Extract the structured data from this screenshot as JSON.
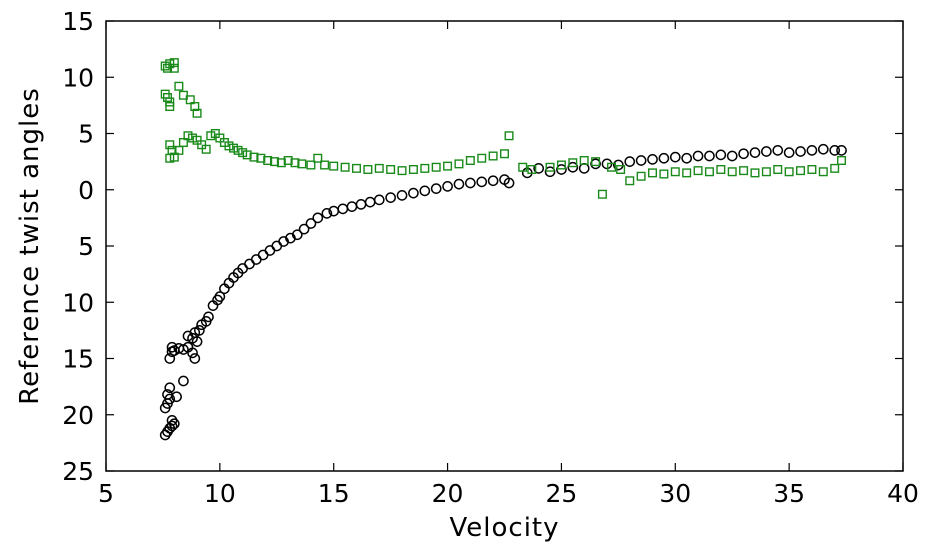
{
  "chart_data": {
    "type": "scatter",
    "title": "",
    "xlabel": "Velocity",
    "ylabel": "Reference twist angles",
    "xlim": [
      5,
      40
    ],
    "ylim": [
      -25,
      15
    ],
    "grid": false,
    "x_ticks": [
      5,
      10,
      15,
      20,
      25,
      30,
      35,
      40
    ],
    "y_ticks": [
      15,
      10,
      5,
      0,
      -5,
      -10,
      -15,
      -20,
      -25
    ],
    "y_tick_labels": [
      "15",
      "10",
      "5",
      "0",
      "5",
      "10",
      "15",
      "20",
      "25"
    ],
    "series": [
      {
        "marker": "circle",
        "color": "#000000",
        "points": [
          [
            7.6,
            -21.8
          ],
          [
            7.7,
            -21.5
          ],
          [
            7.8,
            -21.2
          ],
          [
            7.9,
            -21.0
          ],
          [
            8.0,
            -20.8
          ],
          [
            7.9,
            -20.5
          ],
          [
            7.6,
            -19.4
          ],
          [
            7.7,
            -19.0
          ],
          [
            7.8,
            -18.6
          ],
          [
            7.7,
            -18.2
          ],
          [
            7.8,
            -17.6
          ],
          [
            8.1,
            -18.4
          ],
          [
            8.4,
            -17.0
          ],
          [
            7.8,
            -15.0
          ],
          [
            7.9,
            -14.4
          ],
          [
            7.9,
            -14.0
          ],
          [
            8.0,
            -14.3
          ],
          [
            8.2,
            -14.1
          ],
          [
            8.4,
            -14.2
          ],
          [
            8.6,
            -14.0
          ],
          [
            8.8,
            -14.5
          ],
          [
            8.9,
            -15.0
          ],
          [
            9.0,
            -13.5
          ],
          [
            8.8,
            -13.2
          ],
          [
            8.6,
            -13.0
          ],
          [
            8.9,
            -12.7
          ],
          [
            9.1,
            -12.5
          ],
          [
            9.2,
            -12.0
          ],
          [
            9.4,
            -11.7
          ],
          [
            9.5,
            -11.3
          ],
          [
            9.7,
            -10.3
          ],
          [
            9.9,
            -9.8
          ],
          [
            10.0,
            -9.5
          ],
          [
            10.2,
            -8.8
          ],
          [
            10.4,
            -8.3
          ],
          [
            10.6,
            -7.8
          ],
          [
            10.8,
            -7.4
          ],
          [
            11.0,
            -7.0
          ],
          [
            11.3,
            -6.6
          ],
          [
            11.6,
            -6.2
          ],
          [
            11.9,
            -5.8
          ],
          [
            12.2,
            -5.4
          ],
          [
            12.5,
            -5.0
          ],
          [
            12.8,
            -4.6
          ],
          [
            13.1,
            -4.3
          ],
          [
            13.4,
            -4.0
          ],
          [
            13.7,
            -3.5
          ],
          [
            14.0,
            -3.0
          ],
          [
            14.3,
            -2.5
          ],
          [
            14.7,
            -2.1
          ],
          [
            15.0,
            -1.9
          ],
          [
            15.4,
            -1.7
          ],
          [
            15.8,
            -1.5
          ],
          [
            16.2,
            -1.3
          ],
          [
            16.6,
            -1.1
          ],
          [
            17.0,
            -0.9
          ],
          [
            17.5,
            -0.7
          ],
          [
            18.0,
            -0.5
          ],
          [
            18.5,
            -0.3
          ],
          [
            19.0,
            -0.1
          ],
          [
            19.5,
            0.1
          ],
          [
            20.0,
            0.3
          ],
          [
            20.5,
            0.5
          ],
          [
            21.0,
            0.6
          ],
          [
            21.5,
            0.7
          ],
          [
            22.0,
            0.8
          ],
          [
            22.5,
            0.9
          ],
          [
            22.7,
            0.6
          ],
          [
            23.5,
            1.5
          ],
          [
            24.0,
            1.9
          ],
          [
            24.5,
            1.6
          ],
          [
            25.0,
            1.8
          ],
          [
            25.5,
            2.0
          ],
          [
            26.0,
            1.9
          ],
          [
            26.5,
            2.3
          ],
          [
            27.0,
            2.3
          ],
          [
            27.5,
            2.2
          ],
          [
            28.0,
            2.5
          ],
          [
            28.5,
            2.6
          ],
          [
            29.0,
            2.7
          ],
          [
            29.5,
            2.8
          ],
          [
            30.0,
            2.9
          ],
          [
            30.5,
            2.8
          ],
          [
            31.0,
            3.0
          ],
          [
            31.5,
            3.0
          ],
          [
            32.0,
            3.1
          ],
          [
            32.5,
            3.0
          ],
          [
            33.0,
            3.2
          ],
          [
            33.5,
            3.3
          ],
          [
            34.0,
            3.4
          ],
          [
            34.5,
            3.5
          ],
          [
            35.0,
            3.3
          ],
          [
            35.5,
            3.4
          ],
          [
            36.0,
            3.5
          ],
          [
            36.5,
            3.6
          ],
          [
            37.0,
            3.5
          ],
          [
            37.3,
            3.5
          ]
        ]
      },
      {
        "marker": "square",
        "color": "#1a8a1a",
        "points": [
          [
            7.6,
            11.0
          ],
          [
            7.8,
            11.2
          ],
          [
            8.0,
            11.3
          ],
          [
            7.7,
            10.8
          ],
          [
            8.0,
            10.8
          ],
          [
            7.6,
            8.5
          ],
          [
            7.7,
            8.2
          ],
          [
            7.8,
            7.8
          ],
          [
            7.8,
            7.4
          ],
          [
            8.2,
            9.2
          ],
          [
            8.4,
            8.4
          ],
          [
            8.7,
            8.0
          ],
          [
            8.9,
            7.4
          ],
          [
            9.0,
            6.8
          ],
          [
            7.8,
            4.0
          ],
          [
            7.9,
            3.5
          ],
          [
            7.8,
            2.8
          ],
          [
            8.0,
            2.9
          ],
          [
            8.2,
            3.5
          ],
          [
            8.4,
            4.2
          ],
          [
            8.6,
            4.8
          ],
          [
            8.8,
            4.6
          ],
          [
            9.0,
            4.4
          ],
          [
            9.2,
            4.0
          ],
          [
            9.4,
            3.6
          ],
          [
            9.6,
            4.8
          ],
          [
            9.8,
            5.0
          ],
          [
            10.0,
            4.6
          ],
          [
            10.2,
            4.2
          ],
          [
            10.4,
            3.9
          ],
          [
            10.6,
            3.7
          ],
          [
            10.8,
            3.5
          ],
          [
            11.0,
            3.3
          ],
          [
            11.2,
            3.1
          ],
          [
            11.5,
            2.9
          ],
          [
            11.8,
            2.8
          ],
          [
            12.1,
            2.6
          ],
          [
            12.4,
            2.5
          ],
          [
            12.7,
            2.4
          ],
          [
            13.0,
            2.6
          ],
          [
            13.3,
            2.4
          ],
          [
            13.6,
            2.3
          ],
          [
            14.0,
            2.2
          ],
          [
            14.3,
            2.8
          ],
          [
            14.6,
            2.2
          ],
          [
            15.0,
            2.1
          ],
          [
            15.5,
            2.0
          ],
          [
            16.0,
            1.9
          ],
          [
            16.5,
            1.8
          ],
          [
            17.0,
            1.9
          ],
          [
            17.5,
            1.8
          ],
          [
            18.0,
            1.7
          ],
          [
            18.5,
            1.8
          ],
          [
            19.0,
            1.9
          ],
          [
            19.5,
            2.0
          ],
          [
            20.0,
            2.1
          ],
          [
            20.5,
            2.3
          ],
          [
            21.0,
            2.6
          ],
          [
            21.5,
            2.8
          ],
          [
            22.0,
            3.0
          ],
          [
            22.5,
            3.2
          ],
          [
            22.7,
            4.8
          ],
          [
            23.3,
            2.0
          ],
          [
            23.7,
            1.8
          ],
          [
            24.5,
            2.0
          ],
          [
            25.0,
            2.2
          ],
          [
            25.5,
            2.4
          ],
          [
            26.0,
            2.6
          ],
          [
            26.5,
            2.5
          ],
          [
            26.8,
            -0.4
          ],
          [
            27.2,
            2.0
          ],
          [
            27.6,
            1.8
          ],
          [
            28.0,
            0.8
          ],
          [
            28.5,
            1.2
          ],
          [
            29.0,
            1.5
          ],
          [
            29.5,
            1.4
          ],
          [
            30.0,
            1.6
          ],
          [
            30.5,
            1.5
          ],
          [
            31.0,
            1.7
          ],
          [
            31.5,
            1.6
          ],
          [
            32.0,
            1.8
          ],
          [
            32.5,
            1.6
          ],
          [
            33.0,
            1.7
          ],
          [
            33.5,
            1.5
          ],
          [
            34.0,
            1.6
          ],
          [
            34.5,
            1.8
          ],
          [
            35.0,
            1.6
          ],
          [
            35.5,
            1.7
          ],
          [
            36.0,
            1.8
          ],
          [
            36.5,
            1.6
          ],
          [
            37.0,
            1.9
          ],
          [
            37.3,
            2.6
          ]
        ]
      }
    ]
  }
}
